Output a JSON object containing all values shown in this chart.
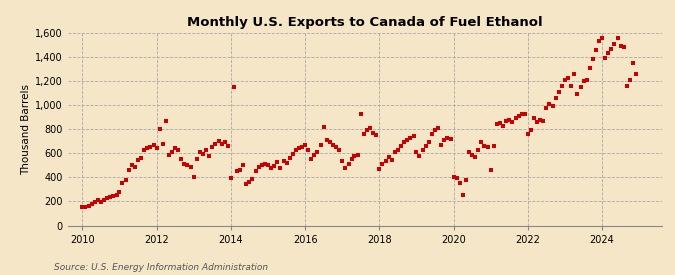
{
  "title": "Monthly U.S. Exports to Canada of Fuel Ethanol",
  "ylabel": "Thousand Barrels",
  "source": "Source: U.S. Energy Information Administration",
  "background_color": "#f5e6c8",
  "scatter_color": "#cc0000",
  "marker": "s",
  "marker_size": 5,
  "ylim": [
    0,
    1600
  ],
  "yticks": [
    0,
    200,
    400,
    600,
    800,
    1000,
    1200,
    1400,
    1600
  ],
  "ytick_labels": [
    "0",
    "200",
    "400",
    "600",
    "800",
    "1,000",
    "1,200",
    "1,400",
    "1,600"
  ],
  "xticks": [
    2010,
    2012,
    2014,
    2016,
    2018,
    2020,
    2022,
    2024
  ],
  "xlim_start": 2009.6,
  "xlim_end": 2025.6,
  "data": [
    [
      2010.0,
      150
    ],
    [
      2010.08,
      155
    ],
    [
      2010.17,
      165
    ],
    [
      2010.25,
      175
    ],
    [
      2010.33,
      195
    ],
    [
      2010.42,
      210
    ],
    [
      2010.5,
      195
    ],
    [
      2010.58,
      215
    ],
    [
      2010.67,
      225
    ],
    [
      2010.75,
      235
    ],
    [
      2010.83,
      245
    ],
    [
      2010.92,
      255
    ],
    [
      2011.0,
      280
    ],
    [
      2011.08,
      355
    ],
    [
      2011.17,
      375
    ],
    [
      2011.25,
      465
    ],
    [
      2011.33,
      505
    ],
    [
      2011.42,
      485
    ],
    [
      2011.5,
      545
    ],
    [
      2011.58,
      565
    ],
    [
      2011.67,
      625
    ],
    [
      2011.75,
      645
    ],
    [
      2011.83,
      655
    ],
    [
      2011.92,
      665
    ],
    [
      2012.0,
      645
    ],
    [
      2012.08,
      805
    ],
    [
      2012.17,
      675
    ],
    [
      2012.25,
      865
    ],
    [
      2012.33,
      585
    ],
    [
      2012.42,
      615
    ],
    [
      2012.5,
      645
    ],
    [
      2012.58,
      625
    ],
    [
      2012.67,
      555
    ],
    [
      2012.75,
      515
    ],
    [
      2012.83,
      500
    ],
    [
      2012.92,
      490
    ],
    [
      2013.0,
      405
    ],
    [
      2013.08,
      555
    ],
    [
      2013.17,
      615
    ],
    [
      2013.25,
      595
    ],
    [
      2013.33,
      630
    ],
    [
      2013.42,
      580
    ],
    [
      2013.5,
      655
    ],
    [
      2013.58,
      680
    ],
    [
      2013.67,
      705
    ],
    [
      2013.75,
      675
    ],
    [
      2013.83,
      695
    ],
    [
      2013.92,
      660
    ],
    [
      2014.0,
      395
    ],
    [
      2014.08,
      1150
    ],
    [
      2014.17,
      455
    ],
    [
      2014.25,
      465
    ],
    [
      2014.33,
      500
    ],
    [
      2014.42,
      345
    ],
    [
      2014.5,
      365
    ],
    [
      2014.58,
      385
    ],
    [
      2014.67,
      455
    ],
    [
      2014.75,
      490
    ],
    [
      2014.83,
      505
    ],
    [
      2014.92,
      510
    ],
    [
      2015.0,
      505
    ],
    [
      2015.08,
      475
    ],
    [
      2015.17,
      495
    ],
    [
      2015.25,
      525
    ],
    [
      2015.33,
      480
    ],
    [
      2015.42,
      540
    ],
    [
      2015.5,
      520
    ],
    [
      2015.58,
      565
    ],
    [
      2015.67,
      595
    ],
    [
      2015.75,
      625
    ],
    [
      2015.83,
      645
    ],
    [
      2015.92,
      655
    ],
    [
      2016.0,
      665
    ],
    [
      2016.08,
      625
    ],
    [
      2016.17,
      550
    ],
    [
      2016.25,
      590
    ],
    [
      2016.33,
      610
    ],
    [
      2016.42,
      665
    ],
    [
      2016.5,
      815
    ],
    [
      2016.58,
      710
    ],
    [
      2016.67,
      690
    ],
    [
      2016.75,
      670
    ],
    [
      2016.83,
      650
    ],
    [
      2016.92,
      625
    ],
    [
      2017.0,
      535
    ],
    [
      2017.08,
      480
    ],
    [
      2017.17,
      515
    ],
    [
      2017.25,
      555
    ],
    [
      2017.33,
      575
    ],
    [
      2017.42,
      585
    ],
    [
      2017.5,
      925
    ],
    [
      2017.58,
      760
    ],
    [
      2017.67,
      790
    ],
    [
      2017.75,
      810
    ],
    [
      2017.83,
      770
    ],
    [
      2017.92,
      750
    ],
    [
      2018.0,
      470
    ],
    [
      2018.08,
      510
    ],
    [
      2018.17,
      540
    ],
    [
      2018.25,
      570
    ],
    [
      2018.33,
      545
    ],
    [
      2018.42,
      610
    ],
    [
      2018.5,
      630
    ],
    [
      2018.58,
      660
    ],
    [
      2018.67,
      690
    ],
    [
      2018.75,
      710
    ],
    [
      2018.83,
      730
    ],
    [
      2018.92,
      745
    ],
    [
      2019.0,
      610
    ],
    [
      2019.08,
      580
    ],
    [
      2019.17,
      630
    ],
    [
      2019.25,
      660
    ],
    [
      2019.33,
      690
    ],
    [
      2019.42,
      760
    ],
    [
      2019.5,
      790
    ],
    [
      2019.58,
      810
    ],
    [
      2019.67,
      670
    ],
    [
      2019.75,
      710
    ],
    [
      2019.83,
      730
    ],
    [
      2019.92,
      720
    ],
    [
      2020.0,
      405
    ],
    [
      2020.08,
      395
    ],
    [
      2020.17,
      355
    ],
    [
      2020.25,
      255
    ],
    [
      2020.33,
      380
    ],
    [
      2020.42,
      610
    ],
    [
      2020.5,
      590
    ],
    [
      2020.58,
      570
    ],
    [
      2020.67,
      630
    ],
    [
      2020.75,
      690
    ],
    [
      2020.83,
      660
    ],
    [
      2020.92,
      650
    ],
    [
      2021.0,
      460
    ],
    [
      2021.08,
      660
    ],
    [
      2021.17,
      840
    ],
    [
      2021.25,
      850
    ],
    [
      2021.33,
      830
    ],
    [
      2021.42,
      870
    ],
    [
      2021.5,
      880
    ],
    [
      2021.58,
      860
    ],
    [
      2021.67,
      890
    ],
    [
      2021.75,
      910
    ],
    [
      2021.83,
      930
    ],
    [
      2021.92,
      930
    ],
    [
      2022.0,
      760
    ],
    [
      2022.08,
      790
    ],
    [
      2022.17,
      890
    ],
    [
      2022.25,
      860
    ],
    [
      2022.33,
      875
    ],
    [
      2022.42,
      870
    ],
    [
      2022.5,
      980
    ],
    [
      2022.58,
      1010
    ],
    [
      2022.67,
      990
    ],
    [
      2022.75,
      1060
    ],
    [
      2022.83,
      1110
    ],
    [
      2022.92,
      1160
    ],
    [
      2023.0,
      1210
    ],
    [
      2023.08,
      1230
    ],
    [
      2023.17,
      1160
    ],
    [
      2023.25,
      1260
    ],
    [
      2023.33,
      1090
    ],
    [
      2023.42,
      1150
    ],
    [
      2023.5,
      1200
    ],
    [
      2023.58,
      1210
    ],
    [
      2023.67,
      1310
    ],
    [
      2023.75,
      1380
    ],
    [
      2023.83,
      1460
    ],
    [
      2023.92,
      1530
    ],
    [
      2024.0,
      1560
    ],
    [
      2024.08,
      1390
    ],
    [
      2024.17,
      1430
    ],
    [
      2024.25,
      1470
    ],
    [
      2024.33,
      1510
    ],
    [
      2024.42,
      1560
    ],
    [
      2024.5,
      1490
    ],
    [
      2024.58,
      1480
    ],
    [
      2024.67,
      1160
    ],
    [
      2024.75,
      1210
    ],
    [
      2024.83,
      1350
    ],
    [
      2024.92,
      1260
    ]
  ]
}
